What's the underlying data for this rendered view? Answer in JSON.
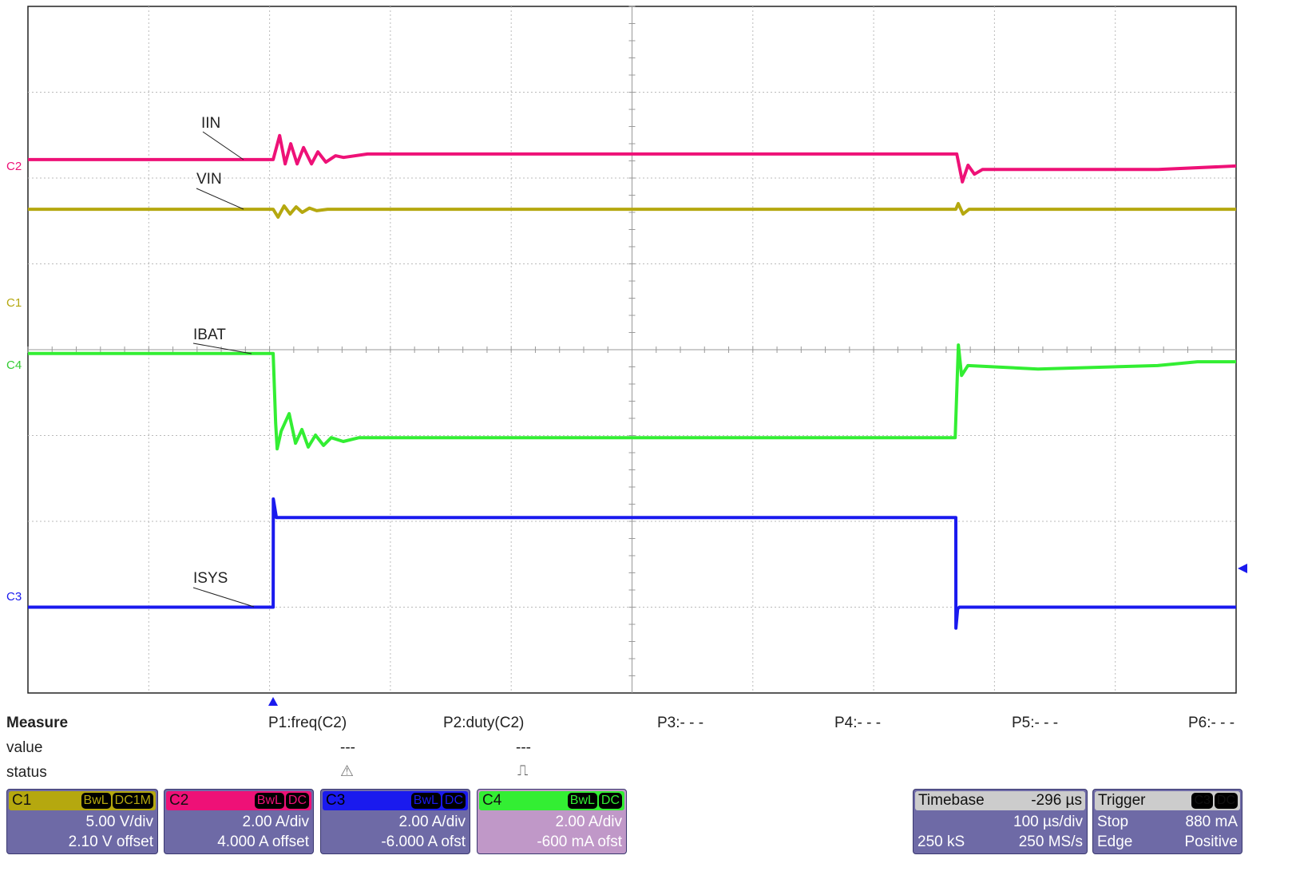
{
  "chart_data": {
    "type": "line",
    "title": "",
    "xlabel": "",
    "ylabel": "",
    "grid": true,
    "x_divisions": 10,
    "y_divisions": 8,
    "xlim_us": [
      -203,
      797
    ],
    "series": [
      {
        "name": "IIN",
        "channel": "C2",
        "color": "#ee1177",
        "unit": "A",
        "scale": 2.0,
        "offset": 4.0,
        "points": [
          [
            -203,
            0.43
          ],
          [
            0,
            0.43
          ],
          [
            5.3,
            0.99
          ],
          [
            9.9,
            0.33
          ],
          [
            14.5,
            0.8
          ],
          [
            19.8,
            0.33
          ],
          [
            25.1,
            0.71
          ],
          [
            31.7,
            0.33
          ],
          [
            37.0,
            0.61
          ],
          [
            43.6,
            0.37
          ],
          [
            51.6,
            0.52
          ],
          [
            58.2,
            0.48
          ],
          [
            78,
            0.56
          ],
          [
            565.8,
            0.56
          ],
          [
            570.4,
            -0.09
          ],
          [
            575.1,
            0.3
          ],
          [
            580.4,
            0.09
          ],
          [
            587,
            0.2
          ],
          [
            732.4,
            0.2
          ],
          [
            797,
            0.28
          ]
        ]
      },
      {
        "name": "VIN",
        "channel": "C1",
        "color": "#b5a80f",
        "unit": "V",
        "scale": 5.0,
        "offset": 2.1,
        "points": [
          [
            -203,
            6.08
          ],
          [
            0,
            6.08
          ],
          [
            4,
            5.62
          ],
          [
            9,
            6.27
          ],
          [
            14,
            5.8
          ],
          [
            19,
            6.22
          ],
          [
            24,
            5.9
          ],
          [
            30,
            6.15
          ],
          [
            36,
            6.0
          ],
          [
            45,
            6.08
          ],
          [
            565,
            6.08
          ],
          [
            567,
            6.41
          ],
          [
            571,
            5.8
          ],
          [
            576,
            6.08
          ],
          [
            797,
            6.08
          ]
        ]
      },
      {
        "name": "IBAT",
        "channel": "C4",
        "color": "#33ee33",
        "unit": "A",
        "scale": 2.0,
        "offset": -0.6,
        "points": [
          [
            -203,
            0.51
          ],
          [
            0,
            0.51
          ],
          [
            2,
            -1.11
          ],
          [
            3.3,
            -1.71
          ],
          [
            6.6,
            -1.3
          ],
          [
            13.2,
            -0.89
          ],
          [
            18.5,
            -1.58
          ],
          [
            23.8,
            -1.26
          ],
          [
            29,
            -1.67
          ],
          [
            35,
            -1.39
          ],
          [
            41.6,
            -1.63
          ],
          [
            48,
            -1.45
          ],
          [
            58,
            -1.54
          ],
          [
            71,
            -1.45
          ],
          [
            564.5,
            -1.45
          ],
          [
            567.1,
            0.71
          ],
          [
            569.8,
            0.0
          ],
          [
            575,
            0.23
          ],
          [
            633,
            0.15
          ],
          [
            732,
            0.23
          ],
          [
            765,
            0.32
          ],
          [
            797,
            0.32
          ]
        ]
      },
      {
        "name": "ISYS",
        "channel": "C3",
        "color": "#1a1aee",
        "unit": "A",
        "scale": 2.0,
        "offset": -6.0,
        "points": [
          [
            -203,
            0.0
          ],
          [
            0,
            0.0
          ],
          [
            0.1,
            2.52
          ],
          [
            2.6,
            2.09
          ],
          [
            565,
            2.09
          ],
          [
            565.1,
            -0.49
          ],
          [
            566.5,
            -0.04
          ],
          [
            568,
            0.0
          ],
          [
            797,
            0.0
          ]
        ]
      }
    ]
  },
  "channel_markers": [
    "C2",
    "C1",
    "C4",
    "C3"
  ],
  "measure": {
    "title": "Measure",
    "row_value": "value",
    "row_status": "status",
    "params": [
      {
        "label": "P1:freq(C2)",
        "value": "---",
        "status": "warning-icon"
      },
      {
        "label": "P2:duty(C2)",
        "value": "---",
        "status": "pulse-icon"
      },
      {
        "label": "P3:- - -"
      },
      {
        "label": "P4:- - -"
      },
      {
        "label": "P5:- - -"
      },
      {
        "label": "P6:- - -"
      }
    ]
  },
  "channels": [
    {
      "name": "C1",
      "bw": "BwL",
      "coupling": "DC1M",
      "vdiv": "5.00 V/div",
      "offset": "2.10 V offset",
      "color": "#b5a80f"
    },
    {
      "name": "C2",
      "bw": "BwL",
      "coupling": "DC",
      "vdiv": "2.00 A/div",
      "offset": "4.000 A offset",
      "color": "#ee1177"
    },
    {
      "name": "C3",
      "bw": "BwL",
      "coupling": "DC",
      "vdiv": "2.00 A/div",
      "offset": "-6.000 A ofst",
      "color": "#1a1aee"
    },
    {
      "name": "C4",
      "bw": "BwL",
      "coupling": "DC",
      "vdiv": "2.00 A/div",
      "offset": "-600 mA ofst",
      "color": "#33ee33"
    }
  ],
  "timebase": {
    "label": "Timebase",
    "delay": "-296 µs",
    "tdiv": "100 µs/div",
    "samples": "250 kS",
    "rate": "250 MS/s"
  },
  "trigger": {
    "label": "Trigger",
    "source": "C3",
    "coupling": "DC",
    "mode": "Stop",
    "level": "880 mA",
    "type": "Edge",
    "slope": "Positive"
  }
}
